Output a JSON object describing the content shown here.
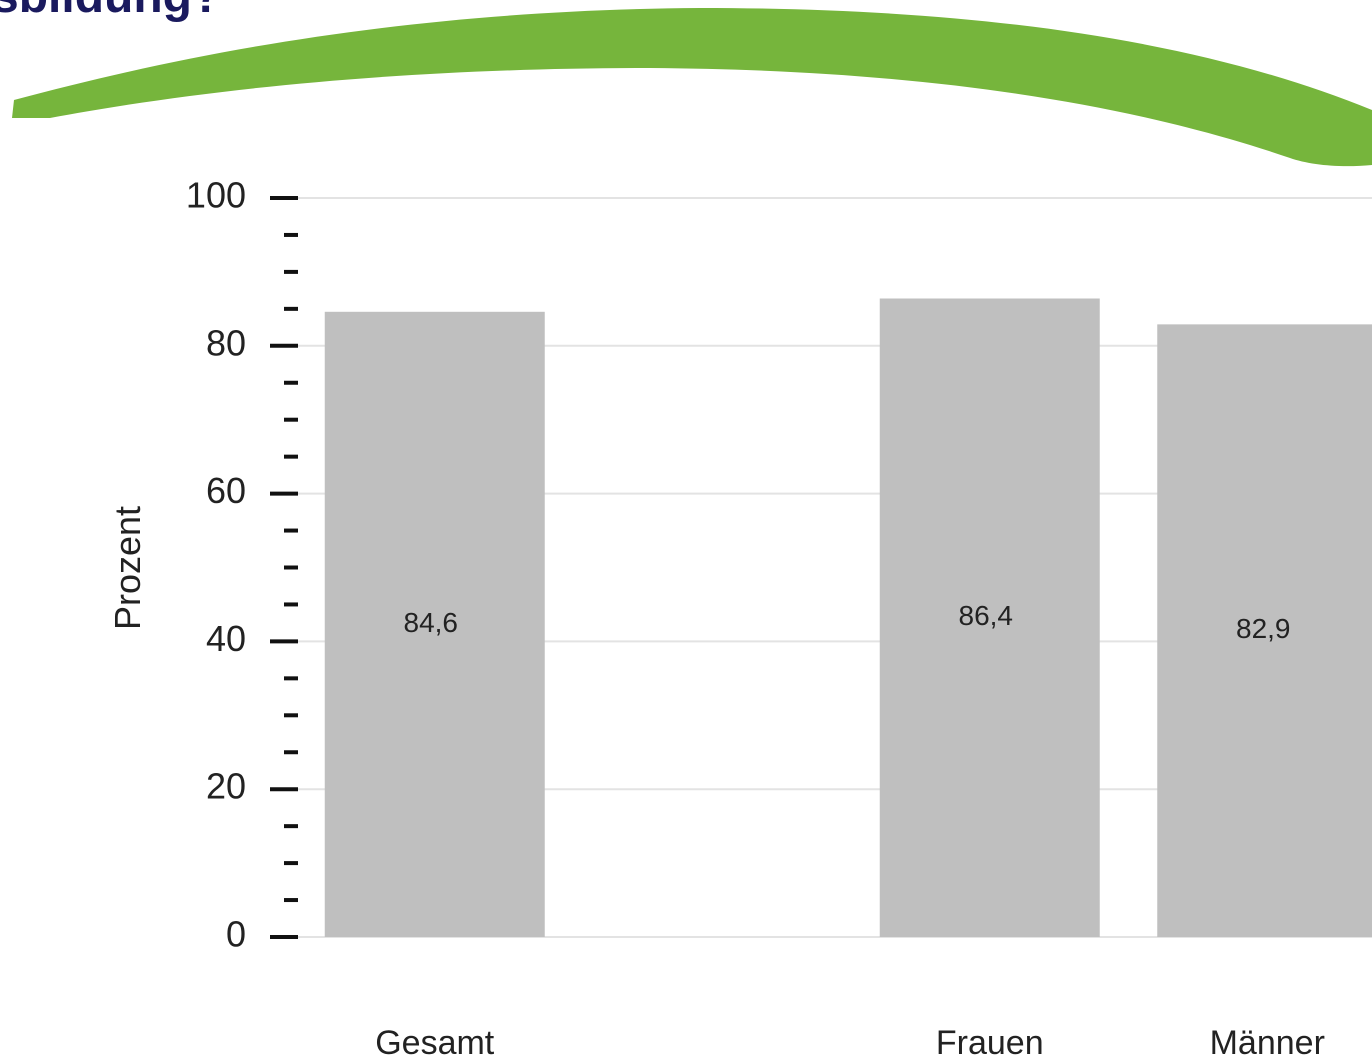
{
  "chart_data": {
    "type": "bar",
    "title": "sbildung?",
    "y_label": "Prozent",
    "categories": [
      "Gesamt",
      null,
      "Frauen",
      "Männer"
    ],
    "values": [
      84.6,
      null,
      86.4,
      82.9
    ],
    "value_labels": [
      "84,6",
      null,
      "86,4",
      "82,9"
    ],
    "color": "#bfbfbf",
    "ylim": [
      0,
      100
    ],
    "yticks": [
      0,
      20,
      40,
      60,
      80,
      100
    ],
    "yminorticks": [
      5,
      10,
      15,
      25,
      30,
      35,
      45,
      50,
      55,
      65,
      70,
      75,
      85,
      90,
      95
    ],
    "grid": true
  }
}
